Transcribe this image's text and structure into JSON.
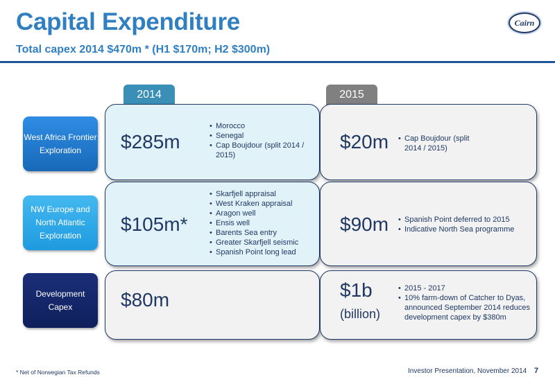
{
  "header": {
    "title": "Capital Expenditure",
    "subtitle": "Total capex 2014 $470m * (H1 $170m; H2 $300m)",
    "logo_text": "Cairn"
  },
  "tabs": [
    "2014",
    "2015"
  ],
  "rows": [
    {
      "category": "West Africa Frontier Exploration",
      "y2014": {
        "amount": "$285m",
        "bullets": [
          "Morocco",
          "Senegal",
          "Cap Boujdour (split 2014 / 2015)"
        ]
      },
      "y2015": {
        "amount": "$20m",
        "bullets": [
          "Cap Boujdour (split 2014 / 2015)"
        ]
      }
    },
    {
      "category": "NW Europe and North Atlantic Exploration",
      "y2014": {
        "amount": "$105m*",
        "bullets": [
          "Skarfjell appraisal",
          "West Kraken appraisal",
          "Aragon well",
          "Ensis well",
          "Barents Sea entry",
          "Greater Skarfjell seismic",
          "Spanish Point long lead"
        ]
      },
      "y2015": {
        "amount": "$90m",
        "bullets": [
          "Spanish Point deferred to 2015",
          "Indicative North Sea programme"
        ]
      }
    },
    {
      "category": "Development Capex",
      "y2014": {
        "amount": "$80m",
        "bullets": []
      },
      "y2015": {
        "amount": "$1b",
        "amount_note": "(billion)",
        "bullets": [
          "2015 - 2017",
          "10% farm-down of Catcher to Dyas, announced September 2014 reduces development capex by $380m"
        ]
      }
    }
  ],
  "footer": {
    "footnote": "* Net of Norwegian Tax Refunds",
    "presentation": "Investor Presentation, November 2014",
    "page": "7"
  },
  "colors": {
    "title": "#2f7fc1",
    "navy": "#1f3864",
    "tab_2014": "#3a8fb7",
    "tab_2015": "#808080"
  }
}
